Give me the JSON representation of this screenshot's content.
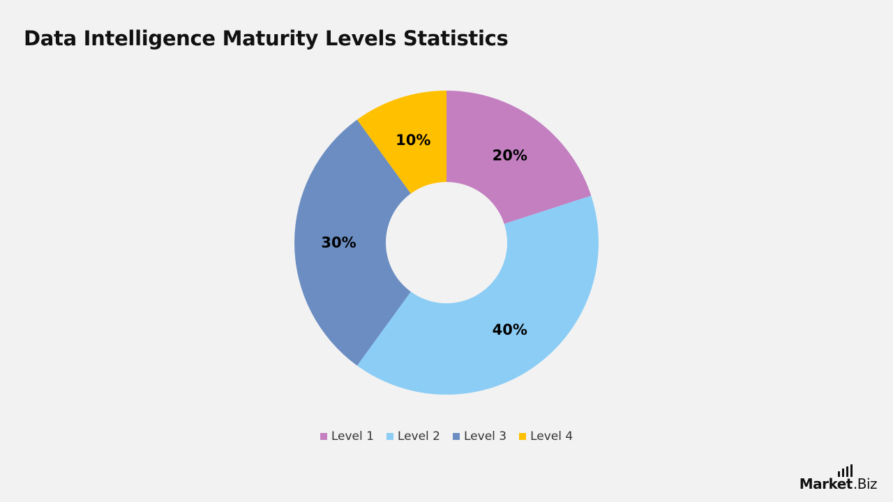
{
  "chart_data": {
    "type": "pie",
    "title": "Data Intelligence Maturity Levels Statistics",
    "categories": [
      "Level 1",
      "Level 2",
      "Level 3",
      "Level 4"
    ],
    "values": [
      20,
      40,
      30,
      10
    ],
    "labels": [
      "20%",
      "40%",
      "30%",
      "10%"
    ],
    "colors": [
      "#c37fc0",
      "#8ccdf5",
      "#6b8dc2",
      "#ffc000"
    ],
    "donut": true,
    "legend_position": "bottom"
  },
  "brand": {
    "main": "Market",
    "suffix": ".Biz"
  }
}
